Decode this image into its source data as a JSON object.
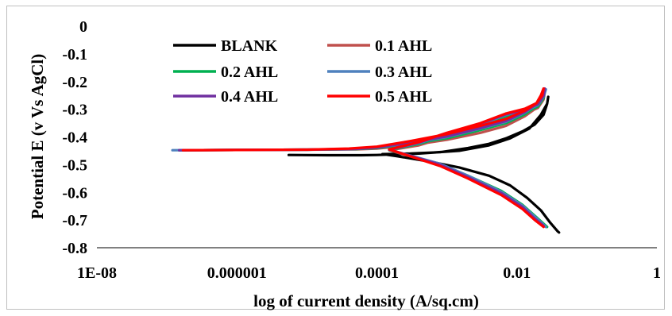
{
  "chart_data": {
    "type": "line",
    "title": "",
    "xlabel": "log of current density (A/sq.cm)",
    "ylabel": "Potential E (v Vs AgCl)",
    "x_scale": "log",
    "xlim": [
      1e-08,
      1
    ],
    "ylim": [
      -0.8,
      0
    ],
    "x_tick_labels": [
      "1E-08",
      "0.000001",
      "0.0001",
      "0.01",
      "1"
    ],
    "x_tick_values": [
      1e-08,
      1e-06,
      0.0001,
      0.01,
      1
    ],
    "y_tick_labels": [
      "0",
      "-0.1",
      "-0.2",
      "-0.3",
      "-0.4",
      "-0.5",
      "-0.6",
      "-0.7",
      "-0.8"
    ],
    "y_tick_values": [
      0,
      -0.1,
      -0.2,
      -0.3,
      -0.4,
      -0.5,
      -0.6,
      -0.7,
      -0.8
    ],
    "grid": false,
    "legend_position": "top",
    "series": [
      {
        "name": "BLANK",
        "color": "#000000",
        "points": [
          [
            5.5e-06,
            -0.465
          ],
          [
            2e-05,
            -0.466
          ],
          [
            6e-05,
            -0.466
          ],
          [
            0.0001,
            -0.465
          ],
          [
            0.0004,
            -0.46
          ],
          [
            0.0015,
            -0.45
          ],
          [
            0.004,
            -0.43
          ],
          [
            0.008,
            -0.405
          ],
          [
            0.015,
            -0.37
          ],
          [
            0.022,
            -0.32
          ],
          [
            0.027,
            -0.28
          ],
          [
            0.028,
            -0.255
          ],
          [
            0.027,
            -0.28
          ],
          [
            0.024,
            -0.32
          ],
          [
            0.018,
            -0.355
          ],
          [
            0.012,
            -0.38
          ],
          [
            0.007,
            -0.405
          ],
          [
            0.004,
            -0.425
          ],
          [
            0.002,
            -0.44
          ],
          [
            0.0008,
            -0.455
          ],
          [
            0.0003,
            -0.46
          ],
          [
            0.00012,
            -0.462
          ],
          [
            0.0002,
            -0.47
          ],
          [
            0.0006,
            -0.49
          ],
          [
            0.0015,
            -0.51
          ],
          [
            0.004,
            -0.54
          ],
          [
            0.008,
            -0.575
          ],
          [
            0.014,
            -0.62
          ],
          [
            0.022,
            -0.665
          ],
          [
            0.03,
            -0.71
          ],
          [
            0.038,
            -0.74
          ],
          [
            0.04,
            -0.745
          ]
        ]
      },
      {
        "name": "0.1 AHL",
        "color": "#c0504d",
        "points": [
          [
            1.5e-07,
            -0.448
          ],
          [
            1e-06,
            -0.447
          ],
          [
            1e-05,
            -0.446
          ],
          [
            5e-05,
            -0.445
          ],
          [
            0.0001,
            -0.442
          ],
          [
            0.0003,
            -0.43
          ],
          [
            0.001,
            -0.41
          ],
          [
            0.003,
            -0.385
          ],
          [
            0.007,
            -0.36
          ],
          [
            0.013,
            -0.325
          ],
          [
            0.019,
            -0.295
          ],
          [
            0.023,
            -0.265
          ],
          [
            0.025,
            -0.24
          ],
          [
            0.024,
            -0.265
          ],
          [
            0.02,
            -0.295
          ],
          [
            0.013,
            -0.315
          ],
          [
            0.007,
            -0.33
          ],
          [
            0.003,
            -0.365
          ],
          [
            0.001,
            -0.4
          ],
          [
            0.0004,
            -0.43
          ],
          [
            0.00015,
            -0.448
          ],
          [
            0.0003,
            -0.47
          ],
          [
            0.0008,
            -0.5
          ],
          [
            0.002,
            -0.545
          ],
          [
            0.006,
            -0.6
          ],
          [
            0.012,
            -0.65
          ],
          [
            0.019,
            -0.695
          ],
          [
            0.026,
            -0.725
          ]
        ]
      },
      {
        "name": "0.2 AHL",
        "color": "#00b050",
        "points": [
          [
            1.5e-07,
            -0.448
          ],
          [
            1e-06,
            -0.447
          ],
          [
            1e-05,
            -0.446
          ],
          [
            5e-05,
            -0.444
          ],
          [
            0.0001,
            -0.44
          ],
          [
            0.0003,
            -0.425
          ],
          [
            0.001,
            -0.405
          ],
          [
            0.003,
            -0.375
          ],
          [
            0.007,
            -0.35
          ],
          [
            0.013,
            -0.318
          ],
          [
            0.019,
            -0.29
          ],
          [
            0.023,
            -0.26
          ],
          [
            0.025,
            -0.235
          ],
          [
            0.024,
            -0.26
          ],
          [
            0.02,
            -0.29
          ],
          [
            0.013,
            -0.31
          ],
          [
            0.007,
            -0.325
          ],
          [
            0.003,
            -0.36
          ],
          [
            0.001,
            -0.395
          ],
          [
            0.0004,
            -0.425
          ],
          [
            0.00015,
            -0.447
          ],
          [
            0.0003,
            -0.468
          ],
          [
            0.0008,
            -0.498
          ],
          [
            0.002,
            -0.54
          ],
          [
            0.006,
            -0.595
          ],
          [
            0.012,
            -0.645
          ],
          [
            0.019,
            -0.69
          ],
          [
            0.027,
            -0.725
          ]
        ]
      },
      {
        "name": "0.3 AHL",
        "color": "#4f81bd",
        "points": [
          [
            1.2e-07,
            -0.448
          ],
          [
            1e-06,
            -0.447
          ],
          [
            1e-05,
            -0.446
          ],
          [
            5e-05,
            -0.443
          ],
          [
            0.0001,
            -0.438
          ],
          [
            0.0003,
            -0.422
          ],
          [
            0.001,
            -0.4
          ],
          [
            0.003,
            -0.37
          ],
          [
            0.007,
            -0.345
          ],
          [
            0.013,
            -0.312
          ],
          [
            0.019,
            -0.285
          ],
          [
            0.023,
            -0.255
          ],
          [
            0.026,
            -0.228
          ],
          [
            0.024,
            -0.255
          ],
          [
            0.02,
            -0.285
          ],
          [
            0.013,
            -0.305
          ],
          [
            0.007,
            -0.32
          ],
          [
            0.003,
            -0.355
          ],
          [
            0.001,
            -0.39
          ],
          [
            0.0004,
            -0.422
          ],
          [
            0.00015,
            -0.446
          ],
          [
            0.0003,
            -0.467
          ],
          [
            0.0008,
            -0.497
          ],
          [
            0.002,
            -0.54
          ],
          [
            0.006,
            -0.598
          ],
          [
            0.012,
            -0.648
          ],
          [
            0.019,
            -0.693
          ],
          [
            0.026,
            -0.725
          ]
        ]
      },
      {
        "name": "0.4 AHL",
        "color": "#7030a0",
        "points": [
          [
            1.5e-07,
            -0.448
          ],
          [
            1e-06,
            -0.447
          ],
          [
            1e-05,
            -0.446
          ],
          [
            5e-05,
            -0.443
          ],
          [
            0.0001,
            -0.438
          ],
          [
            0.0003,
            -0.42
          ],
          [
            0.001,
            -0.398
          ],
          [
            0.003,
            -0.368
          ],
          [
            0.007,
            -0.342
          ],
          [
            0.013,
            -0.31
          ],
          [
            0.019,
            -0.282
          ],
          [
            0.023,
            -0.252
          ],
          [
            0.025,
            -0.225
          ],
          [
            0.024,
            -0.252
          ],
          [
            0.02,
            -0.282
          ],
          [
            0.013,
            -0.302
          ],
          [
            0.007,
            -0.318
          ],
          [
            0.003,
            -0.352
          ],
          [
            0.001,
            -0.388
          ],
          [
            0.0004,
            -0.42
          ],
          [
            0.00015,
            -0.446
          ],
          [
            0.0003,
            -0.468
          ],
          [
            0.0008,
            -0.5
          ],
          [
            0.002,
            -0.545
          ],
          [
            0.006,
            -0.603
          ],
          [
            0.012,
            -0.653
          ],
          [
            0.018,
            -0.695
          ],
          [
            0.024,
            -0.72
          ]
        ]
      },
      {
        "name": "0.5 AHL",
        "color": "#ff0000",
        "points": [
          [
            1.7e-07,
            -0.448
          ],
          [
            1e-06,
            -0.447
          ],
          [
            1e-05,
            -0.446
          ],
          [
            4e-05,
            -0.442
          ],
          [
            0.0001,
            -0.435
          ],
          [
            0.0003,
            -0.415
          ],
          [
            0.001,
            -0.39
          ],
          [
            0.003,
            -0.36
          ],
          [
            0.007,
            -0.335
          ],
          [
            0.013,
            -0.305
          ],
          [
            0.019,
            -0.278
          ],
          [
            0.022,
            -0.25
          ],
          [
            0.024,
            -0.225
          ],
          [
            0.023,
            -0.25
          ],
          [
            0.019,
            -0.278
          ],
          [
            0.013,
            -0.298
          ],
          [
            0.007,
            -0.315
          ],
          [
            0.003,
            -0.35
          ],
          [
            0.001,
            -0.385
          ],
          [
            0.0004,
            -0.418
          ],
          [
            0.00015,
            -0.445
          ],
          [
            0.0003,
            -0.47
          ],
          [
            0.0008,
            -0.505
          ],
          [
            0.002,
            -0.55
          ],
          [
            0.006,
            -0.61
          ],
          [
            0.012,
            -0.66
          ],
          [
            0.018,
            -0.7
          ],
          [
            0.024,
            -0.725
          ]
        ]
      }
    ]
  }
}
